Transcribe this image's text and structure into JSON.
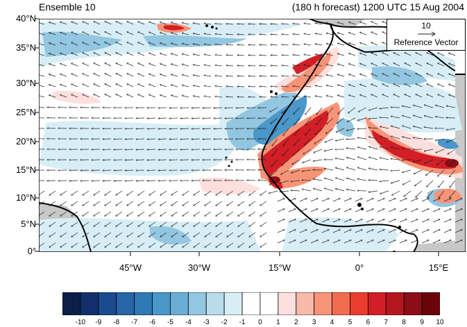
{
  "header": {
    "left": "Ensemble 10",
    "right": "(180 h forecast) 1200 UTC 15 Aug 2004"
  },
  "axes": {
    "y_labels": [
      "40°N",
      "35°N",
      "30°N",
      "25°N",
      "20°N",
      "15°N",
      "10°N",
      "5°N",
      "0°"
    ],
    "x_labels": [
      "45°W",
      "30°W",
      "15°W",
      "0°",
      "15°E"
    ]
  },
  "reference_vector": {
    "value": "10",
    "label": "Reference Vector"
  },
  "colorbar": {
    "labels": [
      "-10",
      "-9",
      "-8",
      "-7",
      "-6",
      "-5",
      "-4",
      "-3",
      "-2",
      "-1",
      "0",
      "1",
      "2",
      "3",
      "4",
      "5",
      "6",
      "7",
      "8",
      "9",
      "10"
    ],
    "colors": [
      "#0c1f4a",
      "#12306c",
      "#1b4a8f",
      "#2765a8",
      "#2f78b6",
      "#4a97c9",
      "#6aaed6",
      "#93c6e0",
      "#b9dceb",
      "#d8eef7",
      "#ffffff",
      "#ffffff",
      "#fde0dd",
      "#f9b9a8",
      "#f79477",
      "#f46c4f",
      "#ea3d2f",
      "#d21e26",
      "#b51720",
      "#8c0d17",
      "#6a0409"
    ]
  },
  "colors": {
    "land_gray": "#c8c8c8",
    "coast": "#000000"
  }
}
